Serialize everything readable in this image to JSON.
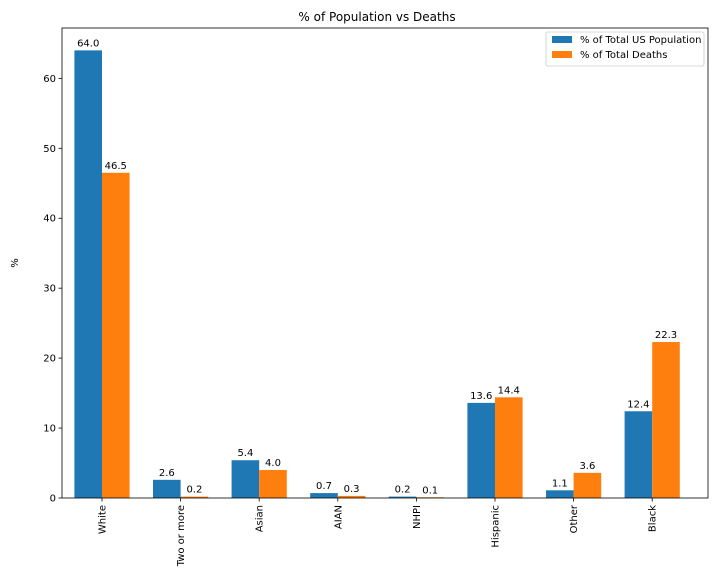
{
  "chart_data": {
    "type": "bar",
    "title": "% of Population vs Deaths",
    "xlabel": "",
    "ylabel": "%",
    "categories": [
      "White",
      "Two or more",
      "Asian",
      "AIAN",
      "NHPI",
      "Hispanic",
      "Other",
      "Black"
    ],
    "series": [
      {
        "name": "% of Total US Population",
        "color": "#1f77b4",
        "values": [
          64.0,
          2.6,
          5.4,
          0.7,
          0.2,
          13.6,
          1.1,
          12.4
        ]
      },
      {
        "name": "% of Total Deaths",
        "color": "#ff7f0e",
        "values": [
          46.5,
          0.2,
          4.0,
          0.3,
          0.1,
          14.4,
          3.6,
          22.3
        ]
      }
    ],
    "ylim": [
      0,
      67.2
    ],
    "yticks": [
      0,
      10,
      20,
      30,
      40,
      50,
      60
    ],
    "grid": false,
    "legend_position": "top-right",
    "value_label_decimals": 1
  }
}
